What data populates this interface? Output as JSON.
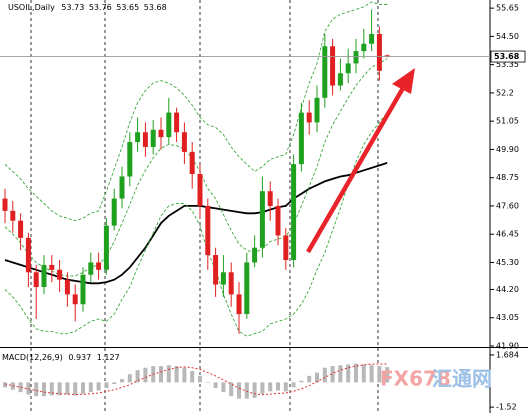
{
  "chart_data": {
    "type": "candlestick",
    "title": "USOIL,Daily",
    "ylim": [
      41.9,
      55.9
    ],
    "yticks": [
      55.65,
      {
        "value": 54.5,
        "label": "54.50"
      },
      53.35,
      52.2,
      51.05,
      {
        "value": 49.9,
        "label": "49.90"
      },
      48.75,
      {
        "value": 47.6,
        "label": "47.60"
      },
      46.45,
      {
        "value": 45.3,
        "label": "45.30"
      },
      {
        "value": 44.2,
        "label": "44.20"
      },
      43.05,
      {
        "value": 41.9,
        "label": "41.90"
      }
    ],
    "up_color": "#1fa01f",
    "down_color": "#e02020",
    "open": [
      47.9,
      47.4,
      47.0,
      46.3,
      44.9,
      44.3,
      45.2,
      45.0,
      44.6,
      44.0,
      43.6,
      44.8,
      45.3,
      45.0,
      46.8,
      47.9,
      48.8,
      50.2,
      50.6,
      50.0,
      50.7,
      50.4,
      51.4,
      50.6,
      49.8,
      48.9,
      47.6,
      45.6,
      44.4,
      44.9,
      44.0,
      43.2,
      45.3,
      45.9,
      48.2,
      47.6,
      46.4,
      45.4,
      49.3,
      51.4,
      51.0,
      52.0,
      54.1,
      52.5,
      53.0,
      53.4,
      53.9,
      54.2,
      54.6,
      53.73
    ],
    "high": [
      48.3,
      47.8,
      47.3,
      46.5,
      45.2,
      45.6,
      45.6,
      45.4,
      44.9,
      44.4,
      45.1,
      45.7,
      45.7,
      47.1,
      48.3,
      49.2,
      50.6,
      51.2,
      51.0,
      51.1,
      51.2,
      52.0,
      51.6,
      51.0,
      50.2,
      49.3,
      47.9,
      45.9,
      45.6,
      45.3,
      44.5,
      45.7,
      46.4,
      48.8,
      48.6,
      47.9,
      46.7,
      49.7,
      51.8,
      51.9,
      52.5,
      54.6,
      54.4,
      53.6,
      54.0,
      54.4,
      54.8,
      55.6,
      54.9,
      53.76
    ],
    "low": [
      46.9,
      46.5,
      45.8,
      44.3,
      43.0,
      44.0,
      44.5,
      44.1,
      43.5,
      42.9,
      43.3,
      44.5,
      44.6,
      44.8,
      46.6,
      47.5,
      48.4,
      49.8,
      49.6,
      49.7,
      49.9,
      50.1,
      50.2,
      49.3,
      48.3,
      47.1,
      45.0,
      43.9,
      43.9,
      43.5,
      42.4,
      43.0,
      45.1,
      45.5,
      47.0,
      46.0,
      45.0,
      45.1,
      49.0,
      50.5,
      50.6,
      51.6,
      52.1,
      52.3,
      52.6,
      53.0,
      53.6,
      53.9,
      52.7,
      53.65
    ],
    "close": [
      47.4,
      47.0,
      46.3,
      44.9,
      44.3,
      45.2,
      45.0,
      44.6,
      44.0,
      43.6,
      44.8,
      45.3,
      45.0,
      46.8,
      47.9,
      48.8,
      50.2,
      50.6,
      50.0,
      50.7,
      50.4,
      51.4,
      50.6,
      49.8,
      48.9,
      47.6,
      45.6,
      44.4,
      44.9,
      44.0,
      43.2,
      45.3,
      45.9,
      48.2,
      47.6,
      46.4,
      45.4,
      49.3,
      51.4,
      51.0,
      52.0,
      54.1,
      52.5,
      53.0,
      53.4,
      53.9,
      54.2,
      54.6,
      53.1,
      53.68
    ],
    "overlays": [
      {
        "color": "#000000",
        "style": "solid",
        "values": [
          45.4,
          45.3,
          45.2,
          45.1,
          45.0,
          44.9,
          44.8,
          44.7,
          44.6,
          44.55,
          44.5,
          44.45,
          44.45,
          44.5,
          44.6,
          44.8,
          45.1,
          45.5,
          45.9,
          46.4,
          46.9,
          47.2,
          47.4,
          47.6,
          47.6,
          47.6,
          47.55,
          47.5,
          47.45,
          47.4,
          47.35,
          47.3,
          47.3,
          47.35,
          47.45,
          47.55,
          47.6,
          47.9,
          48.1,
          48.3,
          48.45,
          48.6,
          48.7,
          48.8,
          48.85,
          48.95,
          49.05,
          49.15,
          49.25,
          49.35
        ]
      },
      {
        "color": "#3aa83a",
        "style": "dashed",
        "values": [
          49.3,
          49.0,
          48.7,
          48.3,
          48.0,
          47.7,
          47.4,
          47.2,
          47.1,
          47.0,
          47.1,
          47.3,
          47.4,
          48.2,
          49.1,
          50.0,
          51.0,
          51.8,
          52.3,
          52.6,
          52.7,
          52.6,
          52.4,
          52.1,
          51.7,
          51.2,
          50.9,
          50.8,
          50.5,
          50.0,
          49.6,
          49.3,
          49.0,
          49.2,
          49.5,
          49.6,
          49.7,
          50.5,
          51.6,
          52.6,
          53.4,
          54.7,
          55.2,
          55.4,
          55.5,
          55.6,
          55.7,
          55.9,
          55.8,
          55.8
        ]
      },
      {
        "color": "#3aa83a",
        "style": "dashed",
        "values": [
          46.75,
          46.45,
          46.1,
          45.65,
          45.3,
          45.1,
          44.95,
          44.8,
          44.75,
          44.75,
          44.9,
          45.1,
          45.2,
          45.55,
          46.15,
          46.9,
          47.65,
          48.45,
          49.05,
          49.55,
          49.95,
          50.1,
          50.05,
          49.9,
          49.55,
          49.0,
          48.3,
          47.9,
          47.25,
          46.6,
          46.05,
          45.8,
          45.7,
          45.85,
          46.15,
          46.25,
          46.35,
          46.85,
          47.6,
          48.4,
          49.2,
          50.2,
          50.9,
          51.45,
          52.0,
          52.5,
          52.9,
          53.25,
          53.4,
          53.6
        ]
      },
      {
        "color": "#3aa83a",
        "style": "dashed",
        "values": [
          44.2,
          43.9,
          43.5,
          43.0,
          42.6,
          42.5,
          42.5,
          42.4,
          42.4,
          42.5,
          42.7,
          42.9,
          43.0,
          42.9,
          43.2,
          43.8,
          44.3,
          45.1,
          45.8,
          46.5,
          47.2,
          47.6,
          47.7,
          47.7,
          47.4,
          46.8,
          45.7,
          45.0,
          44.0,
          43.2,
          42.5,
          42.3,
          42.4,
          42.5,
          42.8,
          42.9,
          43.0,
          43.2,
          43.6,
          44.2,
          45.0,
          45.7,
          46.6,
          47.5,
          48.5,
          49.4,
          50.1,
          50.6,
          51.0,
          51.4
        ]
      }
    ],
    "macd": {
      "title": "MACD(12,26,9)",
      "ylim": [
        -1.82,
        2.05
      ],
      "yticks": [
        1.684,
        -1.52
      ],
      "hist_color": "#b8b8b8",
      "signal_color": "#e03030",
      "histogram": [
        -0.3,
        -0.45,
        -0.6,
        -0.75,
        -0.85,
        -0.85,
        -0.8,
        -0.8,
        -0.75,
        -0.8,
        -0.7,
        -0.6,
        -0.5,
        -0.35,
        -0.1,
        0.2,
        0.5,
        0.75,
        0.9,
        1.0,
        1.0,
        1.05,
        1.0,
        0.9,
        0.7,
        0.4,
        0.0,
        -0.35,
        -0.6,
        -0.85,
        -1.0,
        -1.0,
        -0.95,
        -0.7,
        -0.55,
        -0.5,
        -0.55,
        -0.3,
        0.1,
        0.4,
        0.6,
        0.9,
        1.0,
        1.05,
        1.1,
        1.15,
        1.1,
        1.05,
        1.0,
        0.937
      ],
      "signal": [
        -0.1,
        -0.2,
        -0.3,
        -0.4,
        -0.5,
        -0.6,
        -0.65,
        -0.7,
        -0.72,
        -0.75,
        -0.73,
        -0.7,
        -0.65,
        -0.55,
        -0.45,
        -0.3,
        -0.15,
        0.1,
        0.3,
        0.5,
        0.65,
        0.8,
        0.9,
        0.95,
        0.9,
        0.8,
        0.6,
        0.4,
        0.15,
        -0.1,
        -0.35,
        -0.55,
        -0.7,
        -0.75,
        -0.72,
        -0.68,
        -0.65,
        -0.55,
        -0.4,
        -0.2,
        0.05,
        0.3,
        0.55,
        0.75,
        0.9,
        1.0,
        1.08,
        1.12,
        1.13,
        1.127
      ]
    },
    "watermark": {
      "brand": "FX678",
      "name": "汇通网"
    }
  }
}
